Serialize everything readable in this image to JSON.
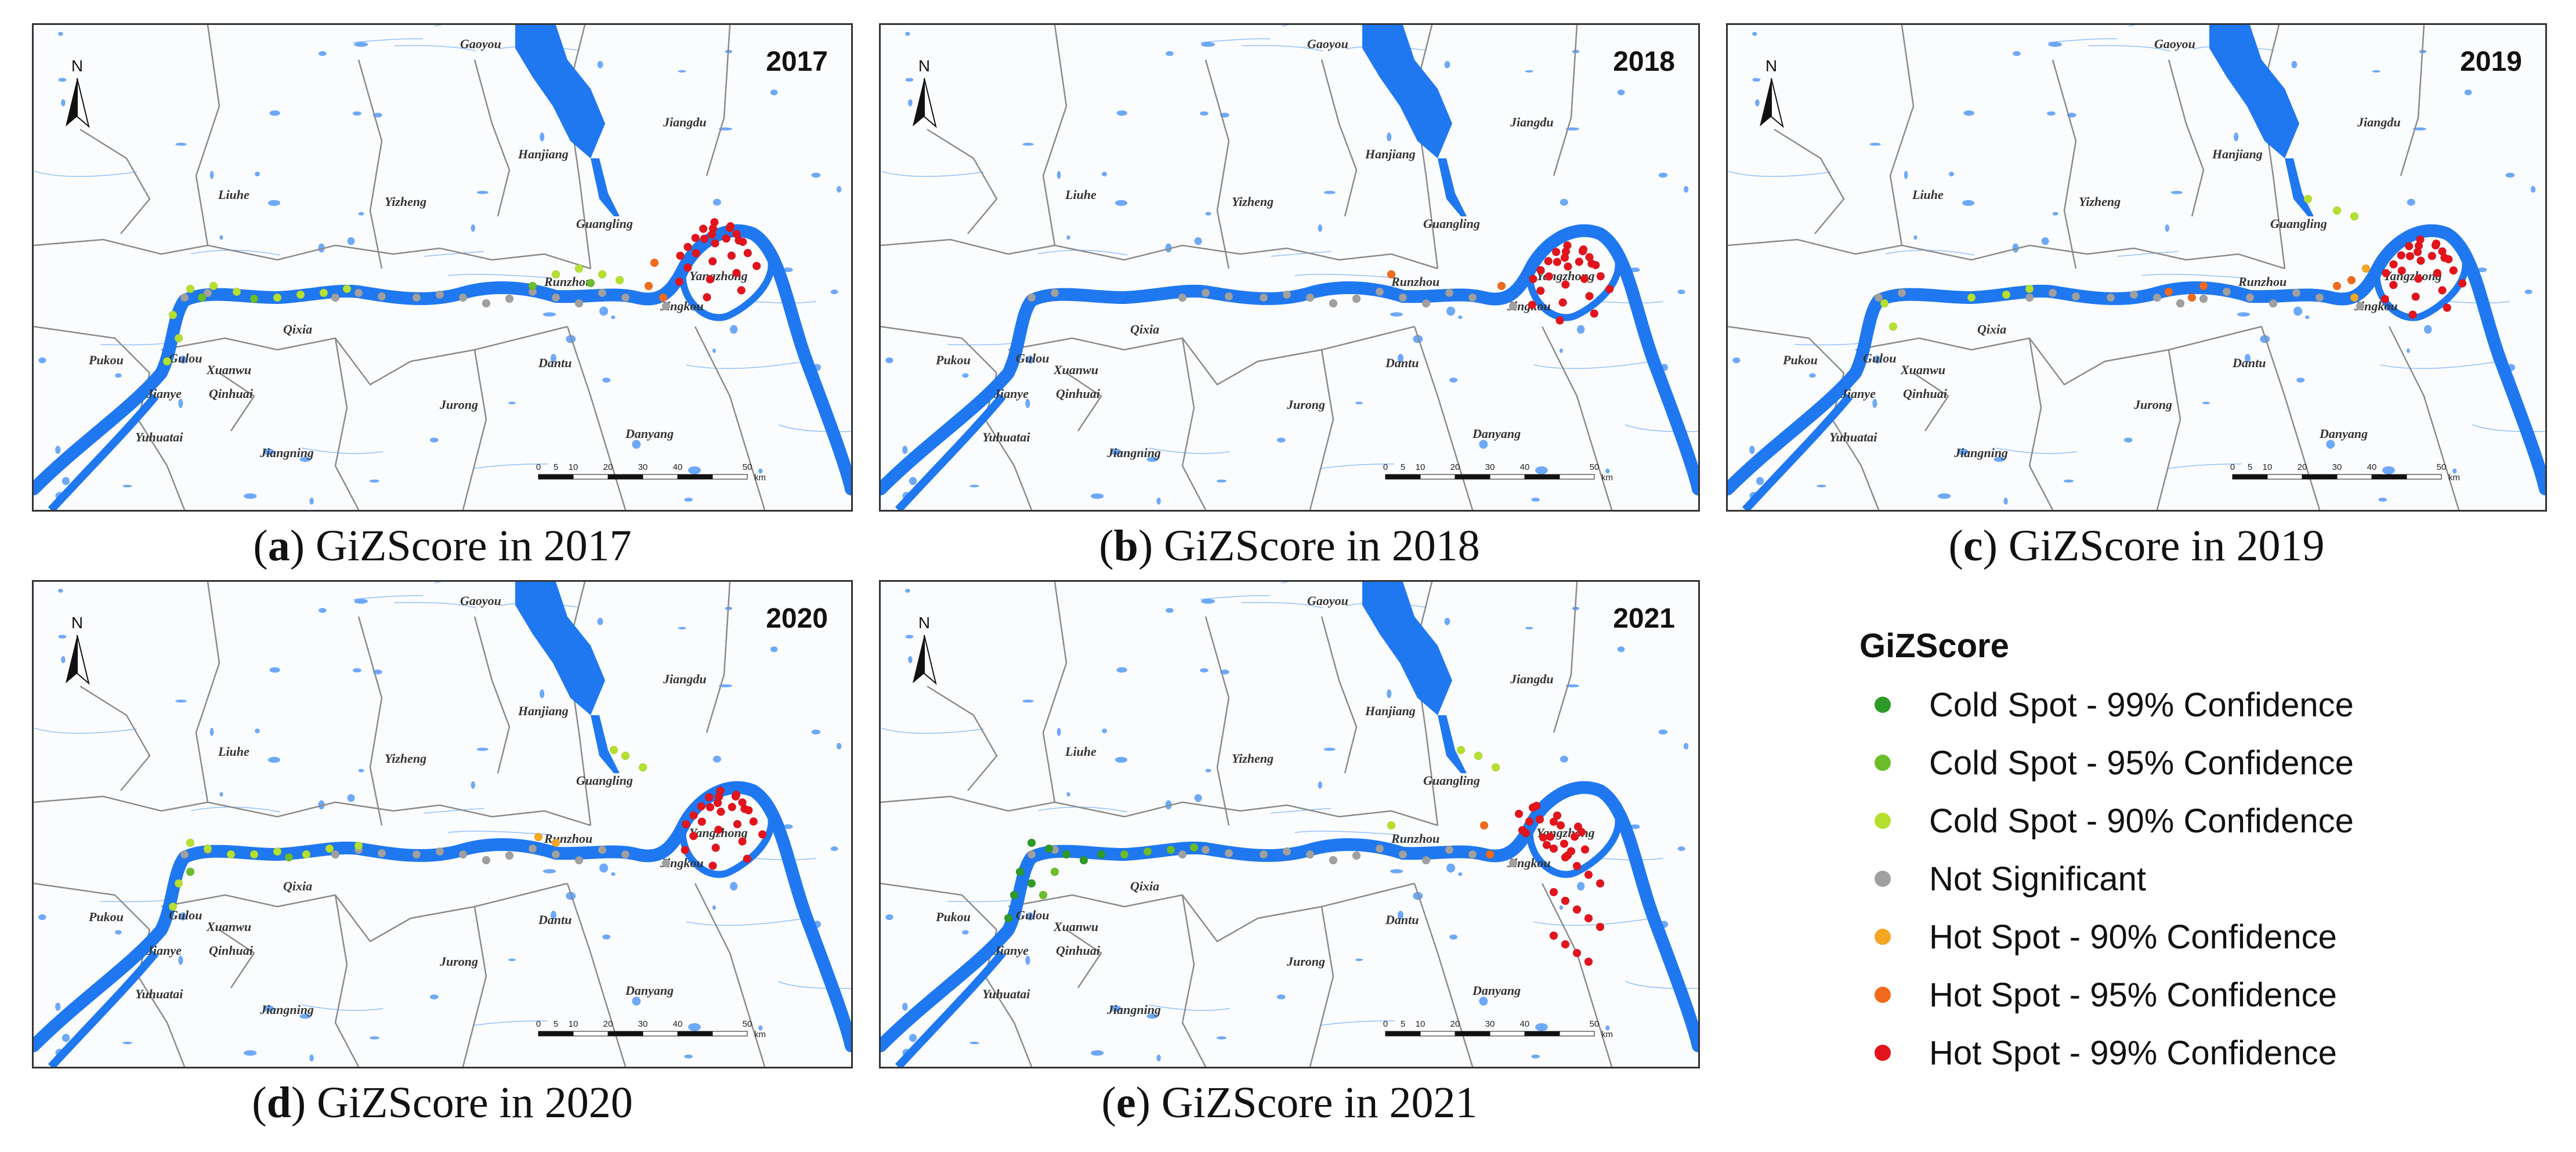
{
  "panels": [
    {
      "id": "a",
      "letter": "a",
      "caption_rest": ") GiZScore in 2017",
      "year": "2017"
    },
    {
      "id": "b",
      "letter": "b",
      "caption_rest": ") GiZScore in 2018",
      "year": "2018"
    },
    {
      "id": "c",
      "letter": "c",
      "caption_rest": ") GiZScore in 2019",
      "year": "2019"
    },
    {
      "id": "d",
      "letter": "d",
      "caption_rest": ") GiZScore in 2020",
      "year": "2020"
    },
    {
      "id": "e",
      "letter": "e",
      "caption_rest": ") GiZScore in 2021",
      "year": "2021"
    }
  ],
  "map": {
    "north_label": "N",
    "scale_labels": [
      "0",
      "5",
      "10",
      "20",
      "30",
      "40",
      "50"
    ],
    "scale_unit": "km",
    "places": [
      "Gaoyou",
      "Jiangdu",
      "Hanjiang",
      "Liuhe",
      "Yizheng",
      "Guangling",
      "Yangzhong",
      "Runzhou",
      "Jingkou",
      "Qixia",
      "Pukou",
      "Gulou",
      "Xuanwu",
      "Jianye",
      "Qinhuai",
      "Yuhuatai",
      "Jiangning",
      "Jurong",
      "Dantu",
      "Danyang"
    ]
  },
  "legend": {
    "title": "GiZScore",
    "items": [
      {
        "label": "Cold Spot - 99% Confidence",
        "color": "#2e9a27"
      },
      {
        "label": "Cold Spot - 95% Confidence",
        "color": "#6cbd2a"
      },
      {
        "label": "Cold Spot - 90% Confidence",
        "color": "#b5e02f"
      },
      {
        "label": "Not Significant",
        "color": "#a0a0a0"
      },
      {
        "label": "Hot Spot - 90% Confidence",
        "color": "#f5a623"
      },
      {
        "label": "Hot Spot - 95% Confidence",
        "color": "#f26a1b"
      },
      {
        "label": "Hot Spot - 99% Confidence",
        "color": "#e3141c"
      }
    ]
  },
  "colors": {
    "river": "#1f78f0",
    "boundary": "#8a8a8a",
    "water_small": "#3d8ef5"
  }
}
